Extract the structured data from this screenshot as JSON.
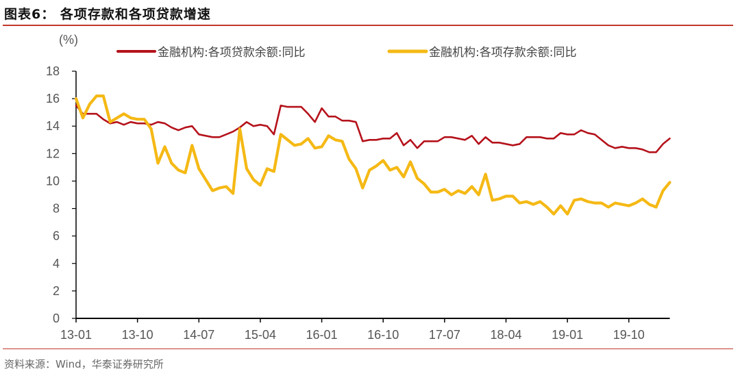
{
  "header": {
    "title": "图表6：  各项存款和各项贷款增速"
  },
  "footer": {
    "source": "资料来源：Wind，华泰证券研究所"
  },
  "colors": {
    "loans": "#b5121b",
    "deposits": "#f5b915",
    "rule": "#c0392b",
    "axis": "#000000"
  },
  "chart_data": {
    "type": "line",
    "title": "各项存款和各项贷款增速",
    "ylabel": "(%)",
    "xlabel": "",
    "ylim": [
      0,
      18
    ],
    "yticks": [
      0,
      2,
      4,
      6,
      8,
      10,
      12,
      14,
      16,
      18
    ],
    "xtick_labels": [
      "13-01",
      "13-10",
      "14-07",
      "15-04",
      "16-01",
      "16-10",
      "17-07",
      "18-04",
      "19-01",
      "19-10"
    ],
    "grid": false,
    "legend_position": "top",
    "x_start": "2013-01",
    "x_frequency": "monthly",
    "series": [
      {
        "name": "金融机构:各项贷款余额:同比",
        "color": "#b5121b",
        "values": [
          15.5,
          14.9,
          14.9,
          14.9,
          14.5,
          14.2,
          14.3,
          14.1,
          14.3,
          14.2,
          14.2,
          14.1,
          14.3,
          14.2,
          13.9,
          13.7,
          13.9,
          14.0,
          13.4,
          13.3,
          13.2,
          13.2,
          13.4,
          13.6,
          13.9,
          14.3,
          14.0,
          14.1,
          14.0,
          13.4,
          15.5,
          15.4,
          15.4,
          15.4,
          14.9,
          14.3,
          15.3,
          14.7,
          14.7,
          14.4,
          14.4,
          14.3,
          12.9,
          13.0,
          13.0,
          13.1,
          13.1,
          13.5,
          12.6,
          13.0,
          12.4,
          12.9,
          12.9,
          12.9,
          13.2,
          13.2,
          13.1,
          13.0,
          13.3,
          12.7,
          13.2,
          12.8,
          12.8,
          12.7,
          12.6,
          12.7,
          13.2,
          13.2,
          13.2,
          13.1,
          13.1,
          13.5,
          13.4,
          13.4,
          13.7,
          13.5,
          13.4,
          13.0,
          12.6,
          12.4,
          12.5,
          12.4,
          12.4,
          12.3,
          12.1,
          12.1,
          12.7,
          13.1
        ]
      },
      {
        "name": "金融机构:各项存款余额:同比",
        "color": "#f5b915",
        "values": [
          16.0,
          14.6,
          15.6,
          16.2,
          16.2,
          14.3,
          14.6,
          14.9,
          14.6,
          14.5,
          14.5,
          13.8,
          11.3,
          12.5,
          11.3,
          10.8,
          10.6,
          12.6,
          10.9,
          10.1,
          9.3,
          9.5,
          9.6,
          9.1,
          13.8,
          10.9,
          10.1,
          9.7,
          10.9,
          10.7,
          13.4,
          13.0,
          12.6,
          12.7,
          13.1,
          12.4,
          12.5,
          13.3,
          13.0,
          12.9,
          11.6,
          10.9,
          9.5,
          10.8,
          11.1,
          11.5,
          10.8,
          11.0,
          10.3,
          11.4,
          10.2,
          9.8,
          9.2,
          9.2,
          9.4,
          9.0,
          9.3,
          9.1,
          9.6,
          9.0,
          10.5,
          8.6,
          8.7,
          8.9,
          8.9,
          8.4,
          8.5,
          8.3,
          8.5,
          8.1,
          7.6,
          8.2,
          7.6,
          8.6,
          8.7,
          8.5,
          8.4,
          8.4,
          8.1,
          8.4,
          8.3,
          8.2,
          8.4,
          8.7,
          8.3,
          8.1,
          9.3,
          9.9
        ]
      }
    ]
  }
}
